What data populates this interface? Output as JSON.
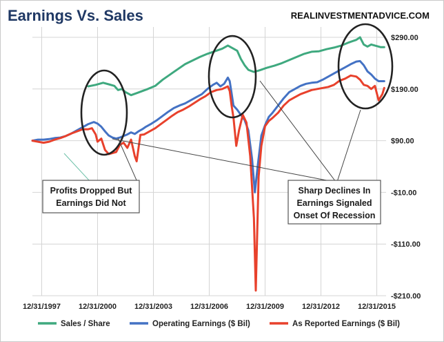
{
  "chart_data": {
    "type": "line",
    "title": "Earnings Vs. Sales",
    "source_label": "REALINVESTMENTADVICE.COM",
    "xlabel": "",
    "ylabel": "",
    "x_range": [
      1997.0,
      2016.0
    ],
    "y_range": [
      -210,
      310
    ],
    "y_ticks": [
      290,
      190,
      90,
      -10,
      -110,
      -210
    ],
    "y_tick_labels": [
      "$290.00",
      "$190.00",
      "$90.00",
      "-$10.00",
      "-$110.00",
      "-$210.00"
    ],
    "x_ticks": [
      1997.5,
      2000.5,
      2003.5,
      2006.5,
      2009.5,
      2012.5,
      2015.5
    ],
    "x_tick_labels": [
      "12/31/1997",
      "12/31/2000",
      "12/31/2003",
      "12/31/2006",
      "12/31/2009",
      "12/31/2012",
      "12/31/2015"
    ],
    "gridlines": true,
    "legend_position": "bottom",
    "series": [
      {
        "name": "Sales / Share",
        "color": "#3fa97f",
        "points": [
          [
            2000.0,
            195
          ],
          [
            2000.4,
            198
          ],
          [
            2000.8,
            202
          ],
          [
            2001.1,
            199
          ],
          [
            2001.4,
            196
          ],
          [
            2001.6,
            188
          ],
          [
            2001.8,
            190
          ],
          [
            2002.0,
            184
          ],
          [
            2002.3,
            178
          ],
          [
            2002.6,
            182
          ],
          [
            2002.9,
            186
          ],
          [
            2003.2,
            190
          ],
          [
            2003.6,
            196
          ],
          [
            2004.0,
            208
          ],
          [
            2004.4,
            218
          ],
          [
            2004.8,
            228
          ],
          [
            2005.2,
            238
          ],
          [
            2005.6,
            245
          ],
          [
            2006.0,
            252
          ],
          [
            2006.4,
            258
          ],
          [
            2006.8,
            263
          ],
          [
            2007.2,
            268
          ],
          [
            2007.5,
            274
          ],
          [
            2007.8,
            268
          ],
          [
            2008.0,
            264
          ],
          [
            2008.2,
            248
          ],
          [
            2008.4,
            236
          ],
          [
            2008.6,
            227
          ],
          [
            2008.9,
            223
          ],
          [
            2009.2,
            226
          ],
          [
            2009.6,
            231
          ],
          [
            2010.0,
            235
          ],
          [
            2010.4,
            240
          ],
          [
            2010.8,
            246
          ],
          [
            2011.2,
            252
          ],
          [
            2011.6,
            258
          ],
          [
            2012.0,
            262
          ],
          [
            2012.4,
            263
          ],
          [
            2012.8,
            267
          ],
          [
            2013.2,
            270
          ],
          [
            2013.6,
            274
          ],
          [
            2014.0,
            280
          ],
          [
            2014.4,
            285
          ],
          [
            2014.6,
            290
          ],
          [
            2014.8,
            276
          ],
          [
            2015.0,
            272
          ],
          [
            2015.2,
            276
          ],
          [
            2015.5,
            273
          ],
          [
            2015.7,
            271
          ],
          [
            2015.9,
            271
          ]
        ]
      },
      {
        "name": "Operating Earnings ($ Bil)",
        "color": "#4472c4",
        "points": [
          [
            1997.0,
            90
          ],
          [
            1997.3,
            92
          ],
          [
            1997.6,
            92
          ],
          [
            1997.9,
            93
          ],
          [
            1998.2,
            95
          ],
          [
            1998.5,
            96
          ],
          [
            1998.8,
            99
          ],
          [
            1999.1,
            104
          ],
          [
            1999.4,
            110
          ],
          [
            1999.7,
            116
          ],
          [
            2000.0,
            122
          ],
          [
            2000.3,
            126
          ],
          [
            2000.5,
            123
          ],
          [
            2000.7,
            117
          ],
          [
            2000.9,
            108
          ],
          [
            2001.1,
            100
          ],
          [
            2001.3,
            96
          ],
          [
            2001.5,
            94
          ],
          [
            2001.7,
            96
          ],
          [
            2001.9,
            99
          ],
          [
            2002.1,
            102
          ],
          [
            2002.3,
            106
          ],
          [
            2002.5,
            103
          ],
          [
            2002.7,
            108
          ],
          [
            2002.9,
            112
          ],
          [
            2003.1,
            117
          ],
          [
            2003.4,
            123
          ],
          [
            2003.7,
            130
          ],
          [
            2004.0,
            138
          ],
          [
            2004.3,
            146
          ],
          [
            2004.6,
            153
          ],
          [
            2004.9,
            158
          ],
          [
            2005.2,
            162
          ],
          [
            2005.5,
            168
          ],
          [
            2005.8,
            174
          ],
          [
            2006.1,
            180
          ],
          [
            2006.4,
            190
          ],
          [
            2006.7,
            198
          ],
          [
            2006.9,
            202
          ],
          [
            2007.1,
            195
          ],
          [
            2007.3,
            200
          ],
          [
            2007.5,
            212
          ],
          [
            2007.6,
            205
          ],
          [
            2007.7,
            182
          ],
          [
            2007.8,
            158
          ],
          [
            2008.0,
            150
          ],
          [
            2008.2,
            140
          ],
          [
            2008.4,
            130
          ],
          [
            2008.6,
            110
          ],
          [
            2008.8,
            55
          ],
          [
            2008.95,
            -10
          ],
          [
            2009.1,
            40
          ],
          [
            2009.3,
            100
          ],
          [
            2009.5,
            120
          ],
          [
            2009.7,
            136
          ],
          [
            2009.9,
            144
          ],
          [
            2010.2,
            158
          ],
          [
            2010.5,
            172
          ],
          [
            2010.8,
            184
          ],
          [
            2011.1,
            190
          ],
          [
            2011.4,
            196
          ],
          [
            2011.7,
            200
          ],
          [
            2012.0,
            202
          ],
          [
            2012.3,
            203
          ],
          [
            2012.6,
            208
          ],
          [
            2012.9,
            214
          ],
          [
            2013.2,
            220
          ],
          [
            2013.5,
            226
          ],
          [
            2013.8,
            232
          ],
          [
            2014.1,
            238
          ],
          [
            2014.4,
            243
          ],
          [
            2014.6,
            244
          ],
          [
            2014.8,
            236
          ],
          [
            2015.0,
            224
          ],
          [
            2015.2,
            218
          ],
          [
            2015.4,
            210
          ],
          [
            2015.6,
            205
          ],
          [
            2015.8,
            205
          ],
          [
            2015.9,
            205
          ]
        ]
      },
      {
        "name": "As Reported Earnings ($ Bil)",
        "color": "#e8412c",
        "points": [
          [
            1997.0,
            90
          ],
          [
            1997.3,
            88
          ],
          [
            1997.6,
            86
          ],
          [
            1997.9,
            88
          ],
          [
            1998.2,
            92
          ],
          [
            1998.5,
            95
          ],
          [
            1998.8,
            99
          ],
          [
            1999.1,
            104
          ],
          [
            1999.4,
            108
          ],
          [
            1999.7,
            112
          ],
          [
            2000.0,
            112
          ],
          [
            2000.2,
            114
          ],
          [
            2000.4,
            102
          ],
          [
            2000.5,
            88
          ],
          [
            2000.7,
            94
          ],
          [
            2000.9,
            72
          ],
          [
            2001.1,
            64
          ],
          [
            2001.3,
            66
          ],
          [
            2001.5,
            68
          ],
          [
            2001.7,
            82
          ],
          [
            2001.9,
            86
          ],
          [
            2002.1,
            76
          ],
          [
            2002.3,
            92
          ],
          [
            2002.5,
            60
          ],
          [
            2002.6,
            50
          ],
          [
            2002.8,
            101
          ],
          [
            2003.0,
            102
          ],
          [
            2003.3,
            108
          ],
          [
            2003.6,
            114
          ],
          [
            2003.9,
            122
          ],
          [
            2004.2,
            130
          ],
          [
            2004.5,
            138
          ],
          [
            2004.8,
            145
          ],
          [
            2005.1,
            150
          ],
          [
            2005.4,
            156
          ],
          [
            2005.7,
            163
          ],
          [
            2006.0,
            170
          ],
          [
            2006.3,
            176
          ],
          [
            2006.6,
            184
          ],
          [
            2006.9,
            188
          ],
          [
            2007.2,
            190
          ],
          [
            2007.5,
            195
          ],
          [
            2007.6,
            186
          ],
          [
            2007.7,
            158
          ],
          [
            2007.8,
            135
          ],
          [
            2007.95,
            80
          ],
          [
            2008.1,
            110
          ],
          [
            2008.3,
            140
          ],
          [
            2008.5,
            125
          ],
          [
            2008.7,
            60
          ],
          [
            2008.9,
            -60
          ],
          [
            2009.0,
            -200
          ],
          [
            2009.15,
            20
          ],
          [
            2009.3,
            80
          ],
          [
            2009.5,
            118
          ],
          [
            2009.7,
            128
          ],
          [
            2009.9,
            134
          ],
          [
            2010.2,
            144
          ],
          [
            2010.5,
            158
          ],
          [
            2010.8,
            168
          ],
          [
            2011.1,
            174
          ],
          [
            2011.4,
            180
          ],
          [
            2011.7,
            184
          ],
          [
            2012.0,
            188
          ],
          [
            2012.3,
            190
          ],
          [
            2012.6,
            192
          ],
          [
            2012.9,
            194
          ],
          [
            2013.2,
            198
          ],
          [
            2013.5,
            206
          ],
          [
            2013.8,
            210
          ],
          [
            2014.1,
            216
          ],
          [
            2014.4,
            214
          ],
          [
            2014.6,
            208
          ],
          [
            2014.8,
            198
          ],
          [
            2015.0,
            196
          ],
          [
            2015.2,
            190
          ],
          [
            2015.4,
            196
          ],
          [
            2015.6,
            168
          ],
          [
            2015.8,
            180
          ],
          [
            2015.9,
            192
          ]
        ]
      }
    ],
    "annotations": [
      {
        "lines": [
          "Profits Dropped But",
          "Earnings Did Not"
        ]
      },
      {
        "lines": [
          "Sharp Declines In",
          "Earnings Signaled",
          "Onset Of Recession"
        ]
      }
    ]
  }
}
